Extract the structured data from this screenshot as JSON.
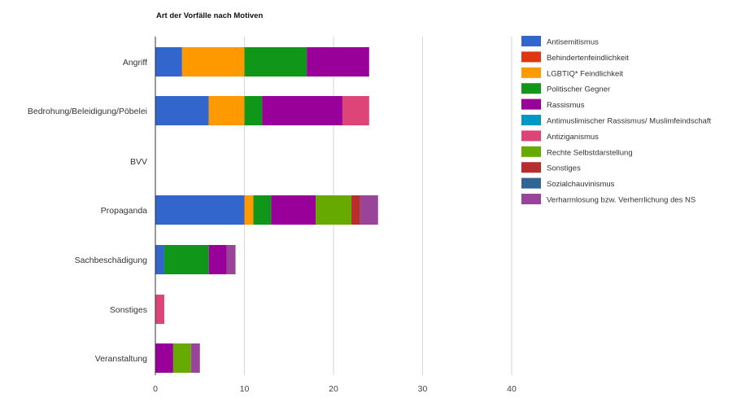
{
  "chart_data": {
    "type": "bar",
    "orientation": "horizontal",
    "stacked": true,
    "title": "Art der Vorfälle nach Motiven",
    "xlabel": "",
    "ylabel": "",
    "xlim": [
      0,
      40
    ],
    "x_ticks": [
      0,
      10,
      20,
      30,
      40
    ],
    "grid": true,
    "legend_position": "right",
    "categories": [
      "Angriff",
      "Bedrohung/Beleidigung/Pöbelei",
      "BVV",
      "Propaganda",
      "Sachbeschädigung",
      "Sonstiges",
      "Veranstaltung"
    ],
    "series": [
      {
        "name": "Antisemitismus",
        "color": "#3366cc",
        "values": [
          3,
          6,
          0,
          10,
          1,
          0,
          0
        ]
      },
      {
        "name": "Behindertenfeindlichkeit",
        "color": "#dc3912",
        "values": [
          0,
          0,
          0,
          0,
          0,
          0,
          0
        ]
      },
      {
        "name": "LGBTIQ* Feindlichkeit",
        "color": "#ff9900",
        "values": [
          7,
          4,
          0,
          1,
          0,
          0,
          0
        ]
      },
      {
        "name": "Politischer Gegner",
        "color": "#109618",
        "values": [
          7,
          2,
          0,
          2,
          5,
          0,
          0
        ]
      },
      {
        "name": "Rassismus",
        "color": "#990099",
        "values": [
          7,
          9,
          0,
          5,
          2,
          0,
          2
        ]
      },
      {
        "name": "Antimuslimischer Rassismus/ Muslimfeindschaft",
        "color": "#0099c6",
        "values": [
          0,
          0,
          0,
          0,
          0,
          0,
          0
        ]
      },
      {
        "name": "Antiziganismus",
        "color": "#dd4477",
        "values": [
          0,
          3,
          0,
          0,
          0,
          1,
          0
        ]
      },
      {
        "name": "Rechte Selbstdarstellung",
        "color": "#66aa00",
        "values": [
          0,
          0,
          0,
          4,
          0,
          0,
          2
        ]
      },
      {
        "name": "Sonstiges",
        "color": "#b82e2e",
        "values": [
          0,
          0,
          0,
          1,
          0,
          0,
          0
        ]
      },
      {
        "name": "Sozialchauvinismus",
        "color": "#316395",
        "values": [
          0,
          0,
          0,
          0,
          0,
          0,
          0
        ]
      },
      {
        "name": "Verharmlosung bzw. Verherrlichung des NS",
        "color": "#994499",
        "values": [
          0,
          0,
          0,
          2,
          1,
          0,
          1
        ]
      }
    ]
  }
}
